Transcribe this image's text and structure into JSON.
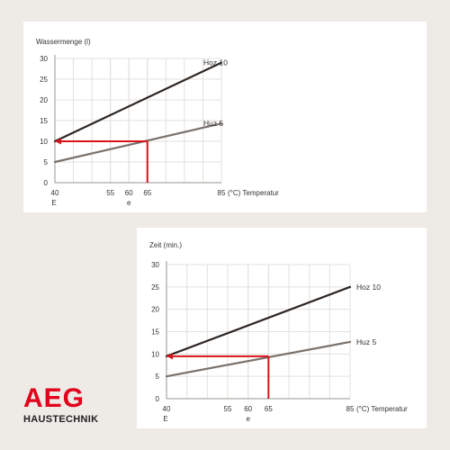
{
  "brand": {
    "name": "AEG",
    "subtitle": "HAUSTECHNIK",
    "color": "#e2001a"
  },
  "colors": {
    "line_hoz10": "#2d2622",
    "line_huz5": "#7a716b",
    "highlight": "#d7141a",
    "grid": "#e3e0dd"
  },
  "chart_data": [
    {
      "type": "line",
      "ylabel": "Wassermenge (l)",
      "xlabel": "(°C) Temperatur",
      "x_ticks": [
        {
          "value": 40,
          "label": "40"
        },
        {
          "value": 55,
          "label": "55"
        },
        {
          "value": 60,
          "label": "60"
        },
        {
          "value": 65,
          "label": "65"
        },
        {
          "value": 85,
          "label": "85"
        }
      ],
      "x_sublabels": [
        {
          "value": 40,
          "label": "E"
        },
        {
          "value": 60,
          "label": "e"
        }
      ],
      "y_ticks": [
        0,
        5,
        10,
        15,
        20,
        25,
        30
      ],
      "xlim": [
        40,
        85
      ],
      "ylim": [
        0,
        30
      ],
      "grid": true,
      "series": [
        {
          "name": "Hoz 10",
          "x": [
            40,
            85
          ],
          "y": [
            10,
            29
          ],
          "color": "#2d2622"
        },
        {
          "name": "Huz 5",
          "x": [
            40,
            85
          ],
          "y": [
            5,
            14.3
          ],
          "color": "#7a716b"
        }
      ],
      "highlight_path": {
        "x": [
          65,
          65,
          40
        ],
        "y": [
          0,
          10,
          10
        ],
        "color": "#d7141a"
      }
    },
    {
      "type": "line",
      "ylabel": "Zeit (min.)",
      "xlabel": "(°C) Temperatur",
      "x_ticks": [
        {
          "value": 40,
          "label": "40"
        },
        {
          "value": 55,
          "label": "55"
        },
        {
          "value": 60,
          "label": "60"
        },
        {
          "value": 65,
          "label": "65"
        },
        {
          "value": 85,
          "label": "85"
        }
      ],
      "x_sublabels": [
        {
          "value": 40,
          "label": "E"
        },
        {
          "value": 60,
          "label": "e"
        }
      ],
      "y_ticks": [
        0,
        5,
        10,
        15,
        20,
        25,
        30
      ],
      "xlim": [
        40,
        85
      ],
      "ylim": [
        0,
        30
      ],
      "grid": true,
      "series": [
        {
          "name": "Hoz 10",
          "x": [
            40,
            85
          ],
          "y": [
            9.5,
            25
          ],
          "color": "#2d2622"
        },
        {
          "name": "Huz  5",
          "x": [
            40,
            85
          ],
          "y": [
            5,
            12.7
          ],
          "color": "#7a716b"
        }
      ],
      "highlight_path": {
        "x": [
          65,
          65,
          40
        ],
        "y": [
          0,
          9.5,
          9.5
        ],
        "color": "#d7141a"
      }
    }
  ]
}
